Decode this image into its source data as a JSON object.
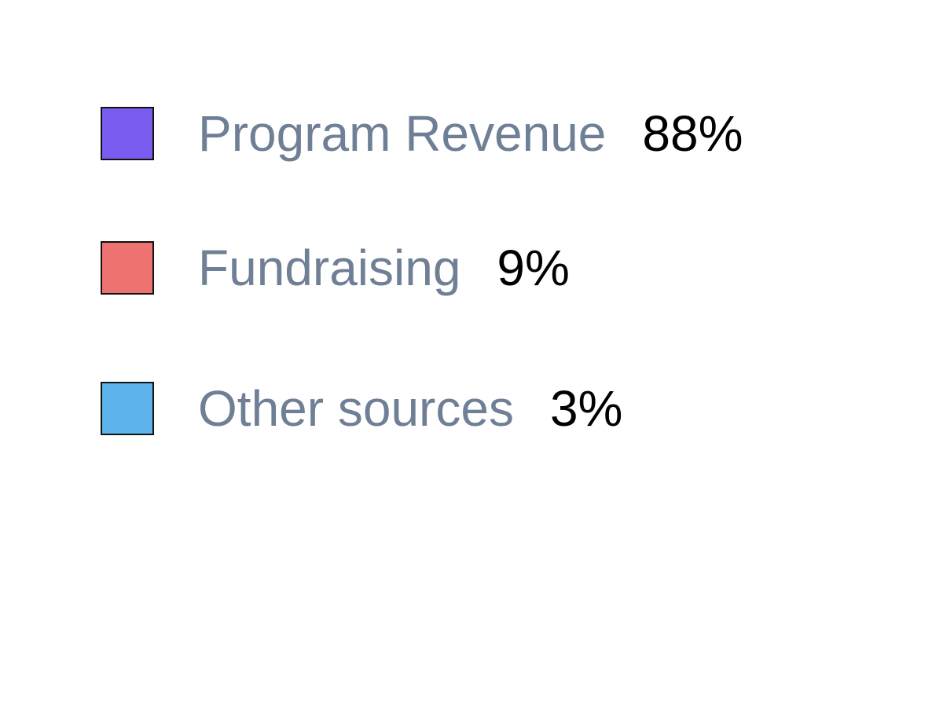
{
  "legend": {
    "items": [
      {
        "label": "Program Revenue",
        "value": "88%",
        "color": "#7b5cf0"
      },
      {
        "label": "Fundraising",
        "value": "9%",
        "color": "#ee726f"
      },
      {
        "label": "Other sources",
        "value": "3%",
        "color": "#5db4ec"
      }
    ]
  }
}
